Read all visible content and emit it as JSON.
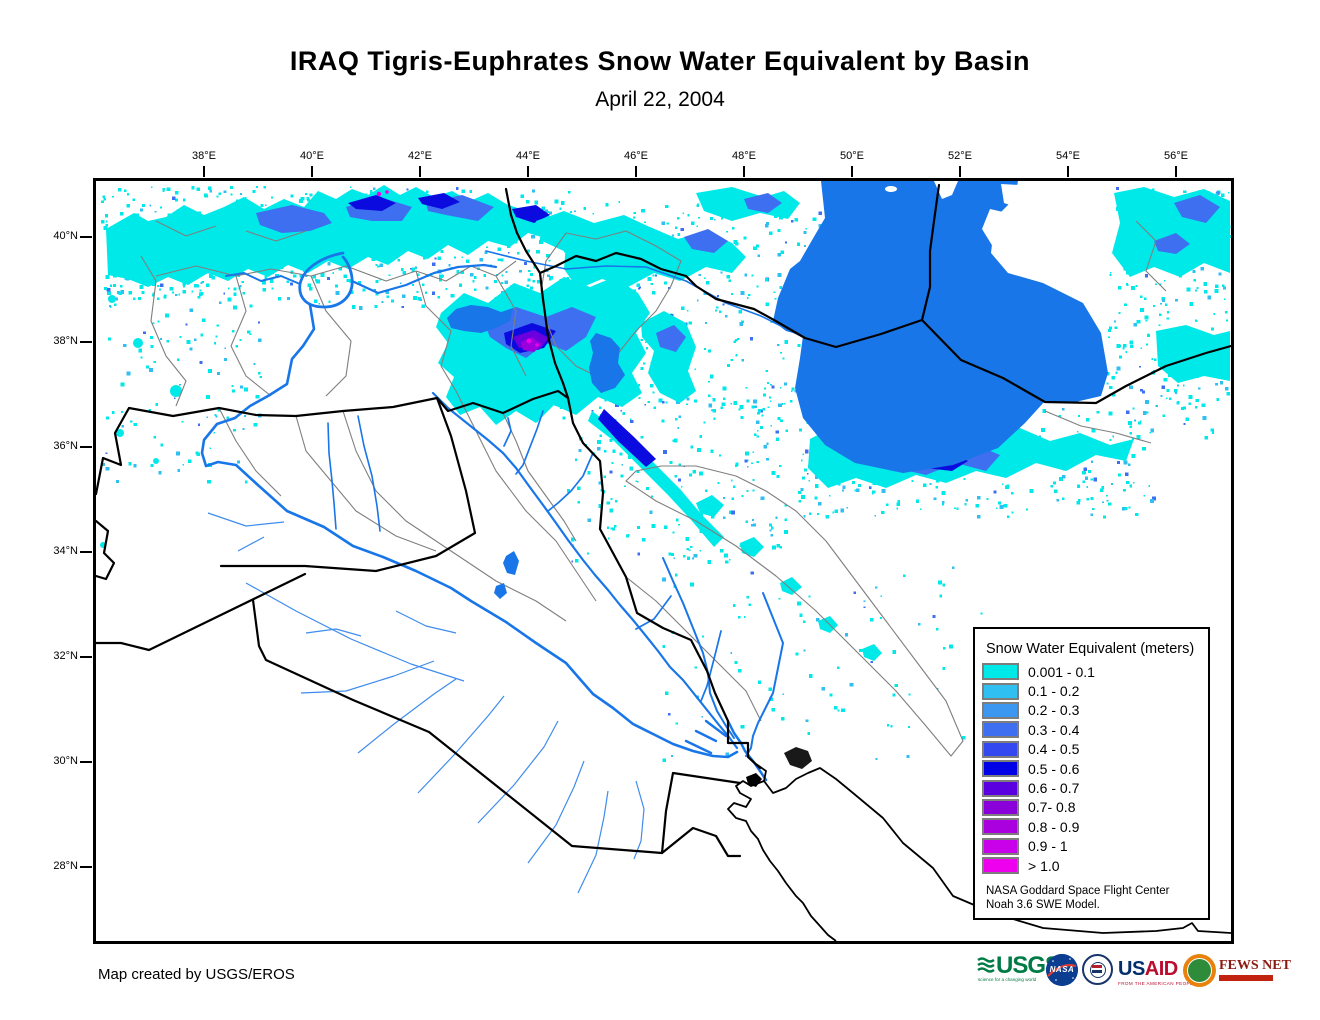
{
  "title": "IRAQ Tigris-Euphrates Snow Water Equivalent by Basin",
  "subtitle": "April 22, 2004",
  "map": {
    "lon_labels": [
      "38°E",
      "40°E",
      "42°E",
      "44°E",
      "46°E",
      "48°E",
      "50°E",
      "52°E",
      "54°E",
      "56°E"
    ],
    "lat_labels": [
      "40°N",
      "38°N",
      "36°N",
      "34°N",
      "32°N",
      "30°N",
      "28°N"
    ],
    "colors": {
      "water": "#1876E8",
      "minor_river": "#3F8CEE",
      "country_border": "#000000",
      "basin_boundary": "#7F7F7F"
    }
  },
  "legend": {
    "title": "Snow Water Equivalent (meters)",
    "entries": [
      {
        "label": "0.001 - 0.1",
        "color": "#00E9E9"
      },
      {
        "label": "0.1 - 0.2",
        "color": "#2FBFF0"
      },
      {
        "label": "0.2 - 0.3",
        "color": "#3B97F0"
      },
      {
        "label": "0.3 - 0.4",
        "color": "#3D6FF0"
      },
      {
        "label": "0.4 - 0.5",
        "color": "#3448F0"
      },
      {
        "label": "0.5 - 0.6",
        "color": "#0000E6"
      },
      {
        "label": "0.6 - 0.7",
        "color": "#5A00E0"
      },
      {
        "label": "0.7- 0.8",
        "color": "#8A00D8"
      },
      {
        "label": "0.8 - 0.9",
        "color": "#AA00E0"
      },
      {
        "label": "0.9 - 1",
        "color": "#C900EA"
      },
      {
        "label": "> 1.0",
        "color": "#EE00EE"
      }
    ],
    "source_line1": "NASA Goddard Space Flight Center",
    "source_line2": "Noah 3.6 SWE Model."
  },
  "credit": "Map created by USGS/EROS",
  "logos": {
    "usgs": {
      "text": "USGS",
      "tagline": "science for a changing world"
    },
    "nasa": {
      "text": "NASA"
    },
    "usaid": {
      "text_us": "US",
      "text_aid": "AID",
      "tagline": "FROM THE AMERICAN PEOPLE"
    },
    "fewsnet": {
      "text": "FEWS NET"
    }
  }
}
